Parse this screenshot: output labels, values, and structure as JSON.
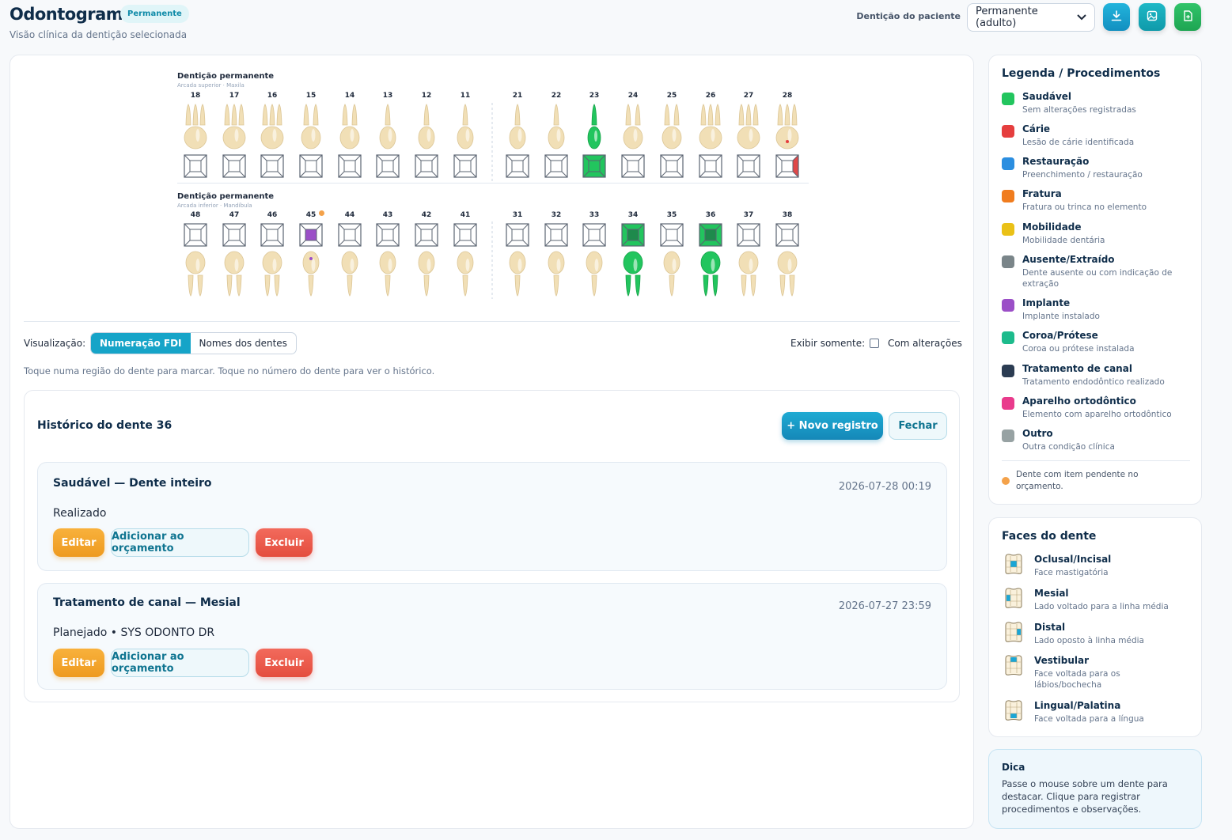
{
  "header": {
    "title": "Odontograma",
    "badge": "Permanente",
    "subtitle": "Visão clínica da dentição selecionada",
    "dentition_label": "Dentição do paciente",
    "dentition_selected": "Permanente (adulto)",
    "buttons": [
      {
        "icon": "download-icon",
        "color": "#1aa6cf"
      },
      {
        "icon": "image-icon",
        "color": "#17a8b8"
      },
      {
        "icon": "document-icon",
        "color": "#22b55d"
      }
    ]
  },
  "odontogram": {
    "upper": {
      "title": "Dentição permanente",
      "subtitle": "Arcada superior · Maxila",
      "teeth": [
        {
          "n": "18",
          "roots": 3
        },
        {
          "n": "17",
          "roots": 3
        },
        {
          "n": "16",
          "roots": 3
        },
        {
          "n": "15",
          "roots": 2
        },
        {
          "n": "14",
          "roots": 2
        },
        {
          "n": "13",
          "roots": 1
        },
        {
          "n": "12",
          "roots": 1
        },
        {
          "n": "11",
          "roots": 1
        },
        {
          "n": "21",
          "roots": 1
        },
        {
          "n": "22",
          "roots": 1
        },
        {
          "n": "23",
          "roots": 1,
          "tooth_color": "#22c55e",
          "face_center": "#22c55e",
          "face_all": "#22c55e"
        },
        {
          "n": "24",
          "roots": 2
        },
        {
          "n": "25",
          "roots": 2
        },
        {
          "n": "26",
          "roots": 3
        },
        {
          "n": "27",
          "roots": 3
        },
        {
          "n": "28",
          "roots": 3,
          "dot": "#e53e3e",
          "face_right": "#e04848"
        }
      ]
    },
    "lower": {
      "title": "Dentição permanente",
      "subtitle": "Arcada inferior · Mandíbula",
      "teeth": [
        {
          "n": "48",
          "roots": 2
        },
        {
          "n": "47",
          "roots": 2
        },
        {
          "n": "46",
          "roots": 2
        },
        {
          "n": "45",
          "roots": 1,
          "face_center": "#9b4fc7",
          "dot": "#9b4fc7",
          "pending": true
        },
        {
          "n": "44",
          "roots": 1
        },
        {
          "n": "43",
          "roots": 1
        },
        {
          "n": "42",
          "roots": 1
        },
        {
          "n": "41",
          "roots": 1
        },
        {
          "n": "31",
          "roots": 1
        },
        {
          "n": "32",
          "roots": 1
        },
        {
          "n": "33",
          "roots": 1
        },
        {
          "n": "34",
          "roots": 2,
          "tooth_color": "#22c55e",
          "face_center": "#1e8a4c",
          "face_all": "#22c55e"
        },
        {
          "n": "35",
          "roots": 1
        },
        {
          "n": "36",
          "roots": 2,
          "tooth_color": "#22c55e",
          "face_center": "#1e8a4c",
          "face_all": "#22c55e"
        },
        {
          "n": "37",
          "roots": 2
        },
        {
          "n": "38",
          "roots": 2
        }
      ]
    }
  },
  "controls": {
    "view_label": "Visualização:",
    "view_options": [
      "Numeração FDI",
      "Nomes dos dentes"
    ],
    "view_active": "Numeração FDI",
    "filter_label": "Exibir somente:",
    "filter_checkbox": "Com alterações",
    "hint": "Toque numa região do dente para marcar. Toque no número do dente para ver o histórico."
  },
  "history": {
    "title": "Histórico do dente 36",
    "new_button": "+ Novo registro",
    "close_button": "Fechar",
    "records": [
      {
        "title": "Saudável — Dente inteiro",
        "date": "2026-07-28 00:19",
        "status": "Realizado",
        "edit": "Editar",
        "add": "Adicionar ao orçamento",
        "delete": "Excluir"
      },
      {
        "title": "Tratamento de canal — Mesial",
        "date": "2026-07-27 23:59",
        "status": "Planejado • SYS ODONTO DR",
        "edit": "Editar",
        "add": "Adicionar ao orçamento",
        "delete": "Excluir"
      }
    ]
  },
  "legend": {
    "title": "Legenda / Procedimentos",
    "items": [
      {
        "name": "Saudável",
        "desc": "Sem alterações registradas",
        "color": "#22c55e"
      },
      {
        "name": "Cárie",
        "desc": "Lesão de cárie identificada",
        "color": "#e53e3e"
      },
      {
        "name": "Restauração",
        "desc": "Preenchimento / restauração",
        "color": "#2b8ee0"
      },
      {
        "name": "Fratura",
        "desc": "Fratura ou trinca no elemento",
        "color": "#f07c1e"
      },
      {
        "name": "Mobilidade",
        "desc": "Mobilidade dentária",
        "color": "#eac117"
      },
      {
        "name": "Ausente/Extraído",
        "desc": "Dente ausente ou com indicação de extração",
        "color": "#7a8589"
      },
      {
        "name": "Implante",
        "desc": "Implante instalado",
        "color": "#9b4fc7"
      },
      {
        "name": "Coroa/Prótese",
        "desc": "Coroa ou prótese instalada",
        "color": "#1dbb8c"
      },
      {
        "name": "Tratamento de canal",
        "desc": "Tratamento endodôntico realizado",
        "color": "#2b3c52"
      },
      {
        "name": "Aparelho ortodôntico",
        "desc": "Elemento com aparelho ortodôntico",
        "color": "#e93b8c"
      },
      {
        "name": "Outro",
        "desc": "Outra condição clínica",
        "color": "#97a2a3"
      }
    ],
    "pending_note": "Dente com item pendente no orçamento.",
    "pending_color": "#f4a24a"
  },
  "faces": {
    "title": "Faces do dente",
    "items": [
      {
        "name": "Oclusal/Incisal",
        "desc": "Face mastigatória",
        "face": "center"
      },
      {
        "name": "Mesial",
        "desc": "Lado voltado para a linha média",
        "face": "left"
      },
      {
        "name": "Distal",
        "desc": "Lado oposto à linha média",
        "face": "right"
      },
      {
        "name": "Vestibular",
        "desc": "Face voltada para os lábios/bochecha",
        "face": "top"
      },
      {
        "name": "Lingual/Palatina",
        "desc": "Face voltada para a língua",
        "face": "bottom"
      }
    ]
  },
  "tip": {
    "title": "Dica",
    "text": "Passe o mouse sobre um dente para destacar. Clique para registrar procedimentos e observações."
  }
}
